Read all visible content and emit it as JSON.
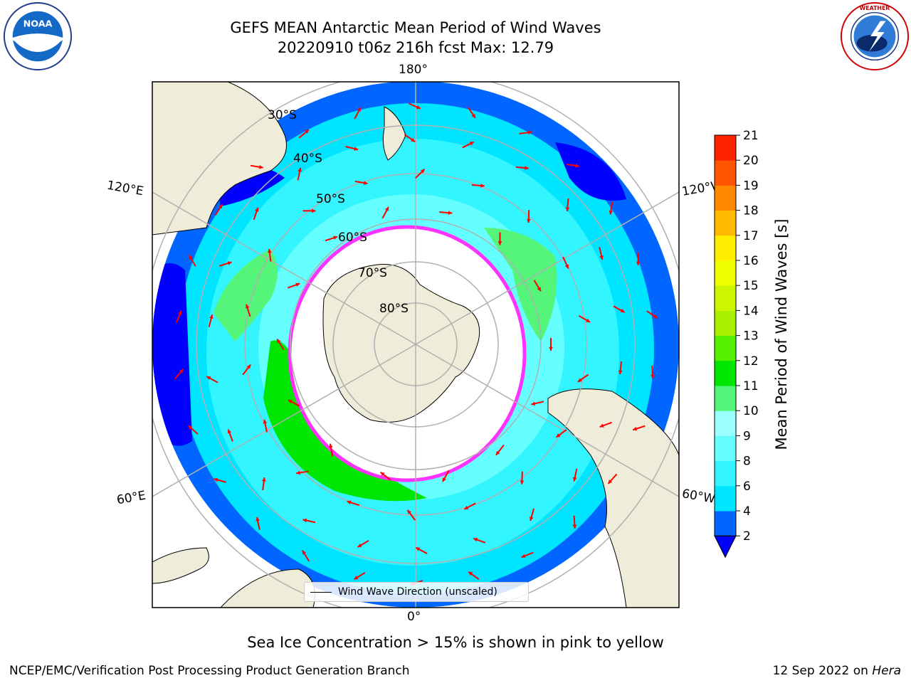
{
  "header": {
    "title_line1": "GEFS MEAN Antarctic Mean Period of Wind Waves",
    "title_line2": "20220910 t06z 216h fcst   Max: 12.79"
  },
  "logos": {
    "left": "noaa-logo",
    "right": "nws-logo",
    "left_text": "NOAA",
    "right_text": "NATIONAL WEATHER SERVICE"
  },
  "map": {
    "projection": "south-polar-stereographic",
    "lon_labels": {
      "top": "180°",
      "bottom": "0°",
      "left_upper": "120°E",
      "left_lower": "60°E",
      "right_upper": "120°W",
      "right_lower": "60°W"
    },
    "lat_labels": [
      "30°S",
      "40°S",
      "50°S",
      "60°S",
      "70°S",
      "80°S"
    ],
    "legend_label": "Wind Wave Direction (unscaled)",
    "arrow_color": "#ff0000",
    "land_color": "#efedd9",
    "ice_edge_color": "#ff33ff"
  },
  "colorbar": {
    "label": "Mean Period of Wind Waves [s]",
    "ticks": [
      "2",
      "4",
      "6",
      "8",
      "9",
      "10",
      "11",
      "12",
      "13",
      "14",
      "15",
      "16",
      "17",
      "18",
      "19",
      "20",
      "21"
    ],
    "colors": [
      "#0066ff",
      "#00e5ff",
      "#33f5ff",
      "#66ffff",
      "#99ffff",
      "#55f57a",
      "#00e600",
      "#55f000",
      "#aaee00",
      "#ccf500",
      "#eeff00",
      "#ffee00",
      "#ffbb00",
      "#ff8800",
      "#ff5500",
      "#ff2200"
    ],
    "under_color": "#0000ff"
  },
  "footer": {
    "note": "Sea Ice Concentration > 15% is shown in pink to yellow",
    "left": "NCEP/EMC/Verification Post Processing Product Generation Branch",
    "date": "12 Sep 2022 on ",
    "machine": "Hera"
  }
}
